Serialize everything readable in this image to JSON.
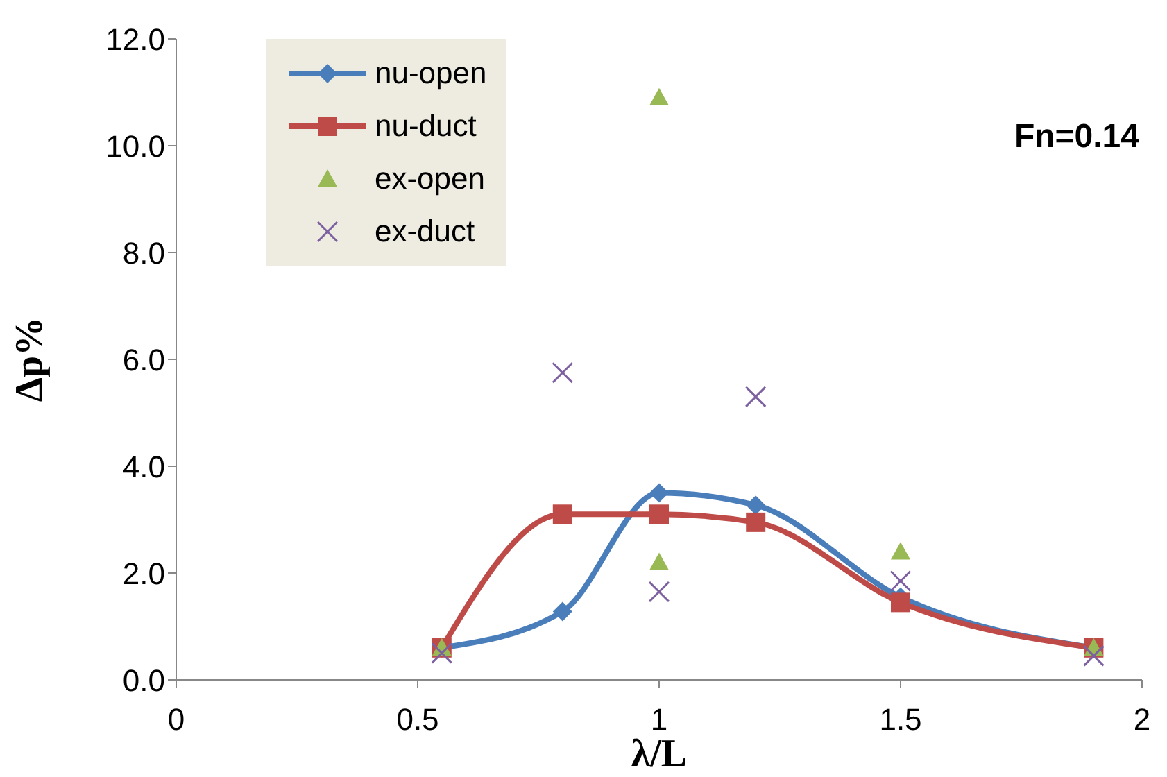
{
  "chart_data": {
    "type": "line",
    "xlabel": "λ/L",
    "ylabel": "Δp%",
    "xlim": [
      0,
      2
    ],
    "xticks": [
      0,
      0.5,
      1,
      1.5,
      2
    ],
    "ylim": [
      0,
      12
    ],
    "yticks": [
      {
        "value": 0,
        "label": "0.0"
      },
      {
        "value": 2,
        "label": "2.0"
      },
      {
        "value": 4,
        "label": "4.0"
      },
      {
        "value": 6,
        "label": "6.0"
      },
      {
        "value": 8,
        "label": "8.0"
      },
      {
        "value": 10,
        "label": "10.0"
      },
      {
        "value": 12,
        "label": "12.0"
      }
    ],
    "grid": false,
    "legend": "top left",
    "annotations": [
      "Fn=0.14"
    ],
    "series": [
      {
        "name": "nu-open",
        "type": "line",
        "marker": "diamond",
        "color": "#4a7ebb",
        "x": [
          0.55,
          0.8,
          1.0,
          1.2,
          1.5,
          1.9
        ],
        "values": [
          0.6,
          1.28,
          3.5,
          3.27,
          1.55,
          0.6
        ]
      },
      {
        "name": "nu-duct",
        "type": "line",
        "marker": "square",
        "color": "#be4b48",
        "x": [
          0.55,
          0.8,
          1.0,
          1.2,
          1.5,
          1.9
        ],
        "values": [
          0.6,
          3.1,
          3.1,
          2.95,
          1.45,
          0.6
        ]
      },
      {
        "name": "ex-open",
        "type": "scatter",
        "marker": "triangle",
        "color": "#98b954",
        "x": [
          0.55,
          1.0,
          1.0,
          1.5,
          1.9
        ],
        "values": [
          0.6,
          10.9,
          2.2,
          2.4,
          0.6
        ]
      },
      {
        "name": "ex-duct",
        "type": "scatter",
        "marker": "cross",
        "color": "#7d60a0",
        "x": [
          0.55,
          0.8,
          1.0,
          1.2,
          1.5,
          1.9
        ],
        "values": [
          0.5,
          5.75,
          1.65,
          5.3,
          1.85,
          0.45
        ]
      }
    ]
  }
}
